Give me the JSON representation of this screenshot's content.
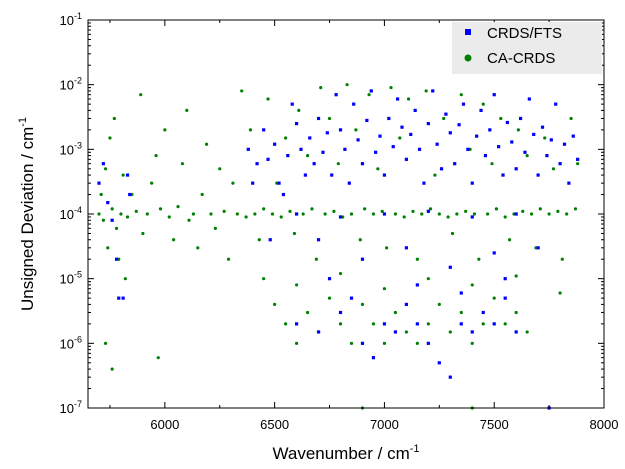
{
  "chart_data": {
    "type": "scatter",
    "title": "",
    "xlabel": "Wavenumber / cm",
    "xlabel_sup": "-1",
    "ylabel": "Unsigned Deviation / cm",
    "ylabel_sup": "-1",
    "xlim": [
      5650,
      8000
    ],
    "ylim": [
      1e-07,
      0.1
    ],
    "yscale": "log",
    "x_ticks": [
      6000,
      6500,
      7000,
      7500,
      8000
    ],
    "x_tick_labels": [
      "6000",
      "6500",
      "7000",
      "7500",
      "8000"
    ],
    "y_ticks": [
      1e-07,
      1e-06,
      1e-05,
      0.0001,
      0.001,
      0.01,
      0.1
    ],
    "y_tick_labels": [
      {
        "base": "10",
        "exp": "-7"
      },
      {
        "base": "10",
        "exp": "-6"
      },
      {
        "base": "10",
        "exp": "-5"
      },
      {
        "base": "10",
        "exp": "-4"
      },
      {
        "base": "10",
        "exp": "-3"
      },
      {
        "base": "10",
        "exp": "-2"
      },
      {
        "base": "10",
        "exp": "-1"
      }
    ],
    "grid": false,
    "legend_position": "top-right",
    "series": [
      {
        "name": "CRDS/FTS",
        "marker": "square",
        "color": "#0000ff",
        "points": [
          [
            5700,
            0.0003
          ],
          [
            5720,
            0.0006
          ],
          [
            5740,
            0.00015
          ],
          [
            5760,
            8e-05
          ],
          [
            5780,
            2e-05
          ],
          [
            5790,
            5e-06
          ],
          [
            5810,
            5e-06
          ],
          [
            5830,
            0.0004
          ],
          [
            5840,
            0.0002
          ],
          [
            6380,
            0.001
          ],
          [
            6400,
            0.0003
          ],
          [
            6420,
            0.0006
          ],
          [
            6450,
            0.002
          ],
          [
            6470,
            0.0007
          ],
          [
            6480,
            4e-05
          ],
          [
            6500,
            0.0012
          ],
          [
            6520,
            0.0003
          ],
          [
            6540,
            0.0002
          ],
          [
            6560,
            0.0008
          ],
          [
            6580,
            0.005
          ],
          [
            6600,
            0.0025
          ],
          [
            6620,
            0.001
          ],
          [
            6640,
            0.0004
          ],
          [
            6660,
            0.0015
          ],
          [
            6680,
            0.0006
          ],
          [
            6700,
            0.003
          ],
          [
            6720,
            0.0009
          ],
          [
            6740,
            0.0018
          ],
          [
            6760,
            0.0004
          ],
          [
            6780,
            0.007
          ],
          [
            6800,
            0.002
          ],
          [
            6820,
            0.001
          ],
          [
            6840,
            0.0003
          ],
          [
            6860,
            0.005
          ],
          [
            6880,
            0.0014
          ],
          [
            6900,
            0.0006
          ],
          [
            6920,
            0.0028
          ],
          [
            6940,
            0.008
          ],
          [
            6960,
            0.0009
          ],
          [
            6980,
            0.0016
          ],
          [
            7000,
            0.0004
          ],
          [
            7020,
            0.003
          ],
          [
            7040,
            0.0011
          ],
          [
            7060,
            0.006
          ],
          [
            7080,
            0.0022
          ],
          [
            7100,
            0.0007
          ],
          [
            7120,
            0.0017
          ],
          [
            7140,
            0.004
          ],
          [
            7160,
            0.001
          ],
          [
            7180,
            0.0003
          ],
          [
            7200,
            0.0025
          ],
          [
            7220,
            0.008
          ],
          [
            7240,
            0.0012
          ],
          [
            7260,
            0.0005
          ],
          [
            7280,
            0.0035
          ],
          [
            7300,
            0.0018
          ],
          [
            7320,
            0.0006
          ],
          [
            7340,
            0.0024
          ],
          [
            7360,
            0.005
          ],
          [
            7380,
            0.001
          ],
          [
            7400,
            0.0003
          ],
          [
            7420,
            0.0016
          ],
          [
            7440,
            0.004
          ],
          [
            7460,
            0.0008
          ],
          [
            7480,
            0.002
          ],
          [
            7500,
            0.007
          ],
          [
            7520,
            0.0011
          ],
          [
            7540,
            0.0004
          ],
          [
            7560,
            0.0026
          ],
          [
            7580,
            0.0013
          ],
          [
            7600,
            0.0005
          ],
          [
            7620,
            0.003
          ],
          [
            7640,
            0.0009
          ],
          [
            7660,
            0.006
          ],
          [
            7680,
            0.0017
          ],
          [
            7700,
            0.0004
          ],
          [
            7720,
            0.0022
          ],
          [
            7740,
            0.0008
          ],
          [
            7760,
            0.0014
          ],
          [
            7780,
            0.005
          ],
          [
            7800,
            0.0006
          ],
          [
            7820,
            0.0012
          ],
          [
            7840,
            0.0003
          ],
          [
            7860,
            0.0016
          ],
          [
            7880,
            0.0007
          ],
          [
            6600,
            0.0001
          ],
          [
            6800,
            9e-05
          ],
          [
            7000,
            0.0001
          ],
          [
            7200,
            0.00011
          ],
          [
            7400,
            9e-05
          ],
          [
            7600,
            0.0001
          ],
          [
            6700,
            4e-05
          ],
          [
            6900,
            2e-05
          ],
          [
            7100,
            3e-05
          ],
          [
            7300,
            1.5e-05
          ],
          [
            7500,
            2.5e-05
          ],
          [
            7700,
            3e-05
          ],
          [
            6600,
            2e-06
          ],
          [
            6700,
            1.5e-06
          ],
          [
            6800,
            3e-06
          ],
          [
            6900,
            1e-06
          ],
          [
            6950,
            6e-07
          ],
          [
            7000,
            2e-06
          ],
          [
            7050,
            1.5e-06
          ],
          [
            7100,
            4e-06
          ],
          [
            7150,
            2e-06
          ],
          [
            7200,
            1e-06
          ],
          [
            7250,
            5e-07
          ],
          [
            7300,
            3e-07
          ],
          [
            7350,
            2e-06
          ],
          [
            7400,
            1.5e-06
          ],
          [
            7450,
            3e-06
          ],
          [
            7500,
            2e-06
          ],
          [
            7550,
            5e-06
          ],
          [
            7600,
            1.5e-06
          ],
          [
            6750,
            1e-05
          ],
          [
            6850,
            5e-06
          ],
          [
            7150,
            8e-06
          ],
          [
            7350,
            6e-06
          ],
          [
            7550,
            1e-05
          ],
          [
            7750,
            1e-07
          ]
        ]
      },
      {
        "name": "CA-CRDS",
        "marker": "circle",
        "color": "#008000",
        "points": [
          [
            5700,
            0.0001
          ],
          [
            5710,
            0.0002
          ],
          [
            5720,
            8e-05
          ],
          [
            5730,
            0.0005
          ],
          [
            5740,
            3e-05
          ],
          [
            5750,
            0.0015
          ],
          [
            5760,
            0.00012
          ],
          [
            5770,
            0.003
          ],
          [
            5780,
            6e-05
          ],
          [
            5790,
            2e-05
          ],
          [
            5800,
            0.0001
          ],
          [
            5810,
            0.0004
          ],
          [
            5820,
            1e-05
          ],
          [
            5830,
            9e-05
          ],
          [
            5850,
            0.0002
          ],
          [
            5870,
            0.00011
          ],
          [
            5890,
            0.007
          ],
          [
            5900,
            5e-05
          ],
          [
            5920,
            0.0001
          ],
          [
            5940,
            0.0003
          ],
          [
            5960,
            0.0008
          ],
          [
            5970,
            6e-07
          ],
          [
            5980,
            0.00012
          ],
          [
            6000,
            0.002
          ],
          [
            6020,
            9e-05
          ],
          [
            6040,
            4e-05
          ],
          [
            6060,
            0.00013
          ],
          [
            6080,
            0.0006
          ],
          [
            6100,
            0.004
          ],
          [
            6110,
            8e-05
          ],
          [
            6130,
            0.0001
          ],
          [
            6150,
            3e-05
          ],
          [
            6170,
            0.0002
          ],
          [
            6190,
            0.0012
          ],
          [
            6210,
            0.0001
          ],
          [
            6230,
            6e-05
          ],
          [
            6250,
            0.0005
          ],
          [
            6270,
            0.00011
          ],
          [
            6290,
            2e-05
          ],
          [
            6310,
            0.0003
          ],
          [
            6330,
            0.0001
          ],
          [
            6350,
            0.008
          ],
          [
            6370,
            9e-05
          ],
          [
            6390,
            0.002
          ],
          [
            6410,
            0.0001
          ],
          [
            6430,
            4e-05
          ],
          [
            6450,
            0.00012
          ],
          [
            6470,
            0.006
          ],
          [
            6490,
            0.0001
          ],
          [
            6510,
            0.0003
          ],
          [
            6530,
            9e-05
          ],
          [
            6550,
            0.0015
          ],
          [
            6570,
            0.00011
          ],
          [
            6590,
            5e-05
          ],
          [
            6610,
            0.004
          ],
          [
            6630,
            0.0001
          ],
          [
            6650,
            0.0008
          ],
          [
            6670,
            0.00012
          ],
          [
            6690,
            2e-05
          ],
          [
            6710,
            0.009
          ],
          [
            6730,
            0.0001
          ],
          [
            6750,
            0.003
          ],
          [
            6770,
            0.00011
          ],
          [
            6790,
            0.0006
          ],
          [
            6810,
            9e-05
          ],
          [
            6830,
            0.01
          ],
          [
            6850,
            0.0001
          ],
          [
            6870,
            0.002
          ],
          [
            6890,
            4e-05
          ],
          [
            6910,
            0.00012
          ],
          [
            6930,
            0.007
          ],
          [
            6950,
            0.0001
          ],
          [
            6970,
            0.0005
          ],
          [
            6990,
            0.00011
          ],
          [
            7010,
            3e-05
          ],
          [
            7030,
            0.009
          ],
          [
            7050,
            0.0001
          ],
          [
            7070,
            0.0015
          ],
          [
            7090,
            9e-05
          ],
          [
            7110,
            0.006
          ],
          [
            7130,
            0.00011
          ],
          [
            7150,
            2e-05
          ],
          [
            7170,
            0.0001
          ],
          [
            7190,
            0.008
          ],
          [
            7210,
            0.00012
          ],
          [
            7230,
            0.0004
          ],
          [
            7250,
            0.0001
          ],
          [
            7270,
            0.003
          ],
          [
            7290,
            9e-05
          ],
          [
            7310,
            5e-05
          ],
          [
            7330,
            0.0001
          ],
          [
            7350,
            0.007
          ],
          [
            7370,
            0.00011
          ],
          [
            7390,
            0.001
          ],
          [
            7410,
            0.0001
          ],
          [
            7430,
            2e-05
          ],
          [
            7450,
            0.005
          ],
          [
            7470,
            0.0001
          ],
          [
            7490,
            0.0006
          ],
          [
            7510,
            0.00012
          ],
          [
            7530,
            0.003
          ],
          [
            7550,
            9e-05
          ],
          [
            7570,
            4e-05
          ],
          [
            7590,
            0.0001
          ],
          [
            7610,
            0.002
          ],
          [
            7630,
            0.00011
          ],
          [
            7650,
            0.0008
          ],
          [
            7670,
            0.0001
          ],
          [
            7690,
            3e-05
          ],
          [
            7710,
            0.00012
          ],
          [
            7730,
            0.0015
          ],
          [
            7750,
            0.0001
          ],
          [
            7770,
            0.0005
          ],
          [
            7790,
            0.00011
          ],
          [
            7810,
            2e-05
          ],
          [
            7830,
            0.0001
          ],
          [
            7850,
            0.003
          ],
          [
            7870,
            0.00012
          ],
          [
            7880,
            0.0006
          ],
          [
            6500,
            4e-06
          ],
          [
            6550,
            2e-06
          ],
          [
            6600,
            1e-06
          ],
          [
            6650,
            3e-06
          ],
          [
            6700,
            1.5e-06
          ],
          [
            6750,
            5e-06
          ],
          [
            6800,
            2e-06
          ],
          [
            6850,
            1e-06
          ],
          [
            6900,
            4e-06
          ],
          [
            6950,
            2e-06
          ],
          [
            7000,
            1e-06
          ],
          [
            7050,
            3e-06
          ],
          [
            7100,
            1.5e-06
          ],
          [
            7150,
            1e-06
          ],
          [
            7200,
            2e-06
          ],
          [
            7250,
            4e-06
          ],
          [
            7300,
            1.5e-06
          ],
          [
            7350,
            3e-06
          ],
          [
            7400,
            1e-06
          ],
          [
            7450,
            2e-06
          ],
          [
            7500,
            5e-06
          ],
          [
            7550,
            2e-06
          ],
          [
            7600,
            3e-06
          ],
          [
            7650,
            1.5e-06
          ],
          [
            6450,
            1e-05
          ],
          [
            6600,
            8e-06
          ],
          [
            6800,
            1.2e-05
          ],
          [
            7000,
            7e-06
          ],
          [
            7200,
            1e-05
          ],
          [
            7400,
            8e-06
          ],
          [
            7600,
            1.1e-05
          ],
          [
            7800,
            6e-06
          ],
          [
            5760,
            4e-07
          ],
          [
            5730,
            1e-06
          ],
          [
            6900,
            1e-07
          ],
          [
            7400,
            1e-07
          ]
        ]
      }
    ]
  }
}
